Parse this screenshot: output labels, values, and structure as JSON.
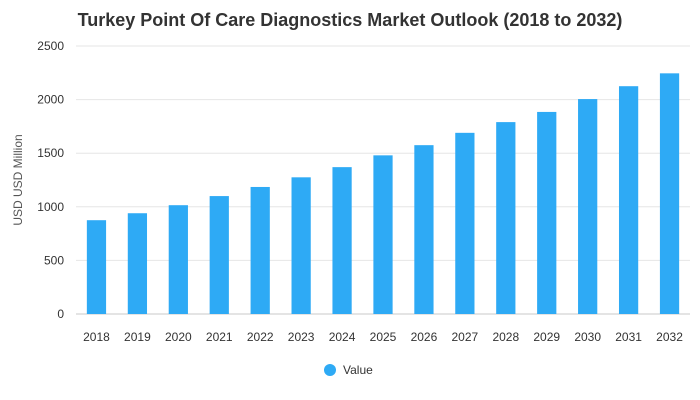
{
  "chart_data": {
    "type": "bar",
    "title": "Turkey Point Of Care Diagnostics Market Outlook (2018 to 2032)",
    "xlabel": "",
    "ylabel": "USD USD Million",
    "categories": [
      "2018",
      "2019",
      "2020",
      "2021",
      "2022",
      "2023",
      "2024",
      "2025",
      "2026",
      "2027",
      "2028",
      "2029",
      "2030",
      "2031",
      "2032"
    ],
    "series": [
      {
        "name": "Value",
        "values": [
          875,
          940,
          1015,
          1100,
          1185,
          1275,
          1370,
          1480,
          1575,
          1690,
          1790,
          1885,
          2005,
          2125,
          2245
        ],
        "color": "#2eaaf5"
      }
    ],
    "ylim": [
      0,
      2500
    ],
    "yticks": [
      0,
      500,
      1000,
      1500,
      2000,
      2500
    ],
    "grid": true,
    "legend": "bottom-center"
  }
}
